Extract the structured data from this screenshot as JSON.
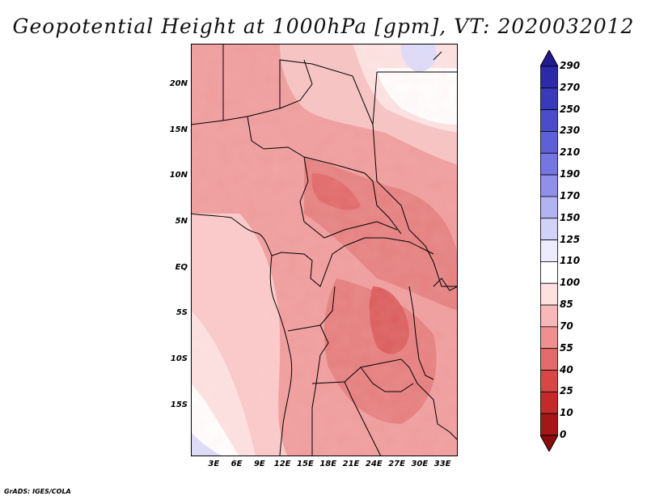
{
  "title": "Geopotential Height at 1000hPa [gpm], VT: 2020032012",
  "credit": "GrADS: IGES/COLA",
  "map": {
    "lat_labels": [
      "20N",
      "15N",
      "10N",
      "5N",
      "EQ",
      "5S",
      "10S",
      "15S"
    ],
    "lat_values": [
      20,
      15,
      10,
      5,
      0,
      -5,
      -10,
      -15
    ],
    "lon_labels": [
      "3E",
      "6E",
      "9E",
      "12E",
      "15E",
      "18E",
      "21E",
      "24E",
      "27E",
      "30E",
      "33E"
    ],
    "lon_values": [
      3,
      6,
      9,
      12,
      15,
      18,
      21,
      24,
      27,
      30,
      33
    ]
  },
  "colorbar": {
    "labels": [
      "290",
      "270",
      "250",
      "230",
      "210",
      "190",
      "170",
      "150",
      "125",
      "110",
      "100",
      "85",
      "70",
      "55",
      "40",
      "25",
      "10",
      "0"
    ],
    "colors": [
      "#211a8f",
      "#2c2aa8",
      "#3a39bd",
      "#4b4ccc",
      "#5e60d8",
      "#7676e2",
      "#9090ea",
      "#b3b3f1",
      "#d2d2f8",
      "#ececfc",
      "#ffffff",
      "#fde0e0",
      "#f7b8b8",
      "#ef9090",
      "#e56a6a",
      "#d94646",
      "#c42a2a",
      "#a51616",
      "#8a0c0c"
    ]
  }
}
